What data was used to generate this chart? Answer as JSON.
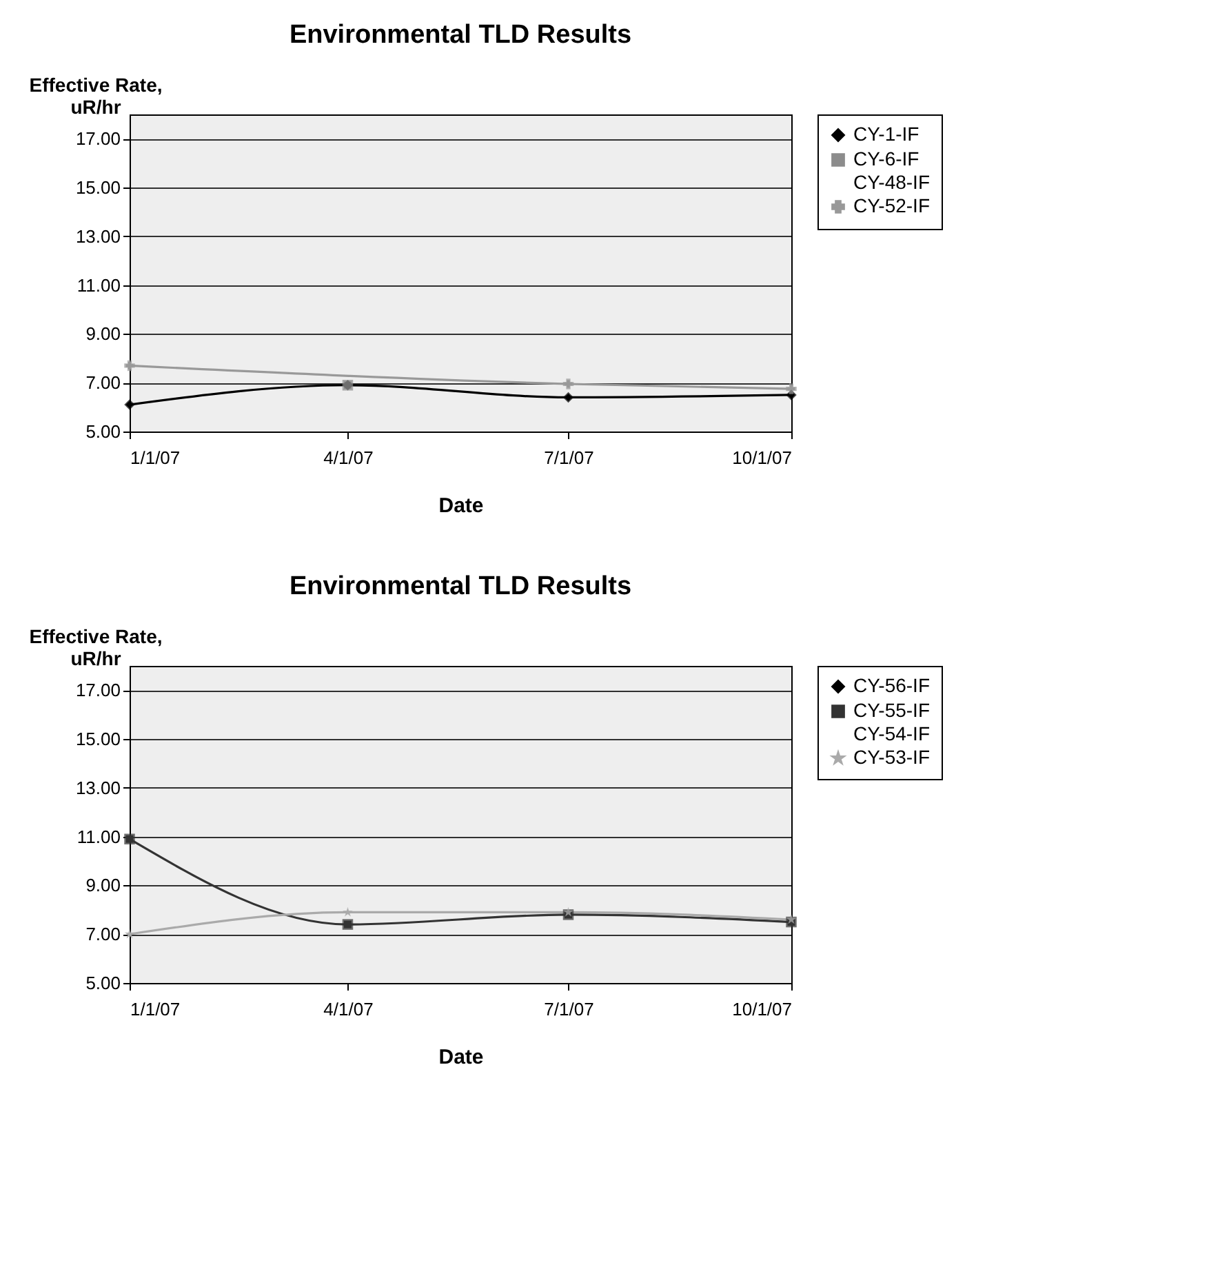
{
  "chart_data": [
    {
      "type": "line",
      "title": "Environmental TLD Results",
      "xlabel": "Date",
      "ylabel": "Effective Rate,\nuR/hr",
      "x": [
        "2007-01-01",
        "2007-04-01",
        "2007-07-01",
        "2007-10-01"
      ],
      "series": [
        {
          "name": "CY-1-IF",
          "color": "#000000",
          "marker": "diamond",
          "values": [
            6.1,
            6.9,
            6.4,
            6.5
          ]
        },
        {
          "name": "CY-6-IF",
          "color": "#8c8c8c",
          "marker": "square",
          "values": [
            null,
            6.9,
            null,
            null
          ]
        },
        {
          "name": "CY-48-IF",
          "marker": "none",
          "values": [
            null,
            null,
            null,
            null
          ]
        },
        {
          "name": "CY-52-IF",
          "color": "#999999",
          "marker": "cross",
          "values": [
            7.7,
            null,
            6.95,
            6.75
          ]
        }
      ],
      "xlim": [
        "2007-01-01",
        "2007-10-01"
      ],
      "xticks": [
        {
          "value": "2007-01-01",
          "label": "1/1/07"
        },
        {
          "value": "2007-04-01",
          "label": "4/1/07"
        },
        {
          "value": "2007-07-01",
          "label": "7/1/07"
        },
        {
          "value": "2007-10-01",
          "label": "10/1/07"
        }
      ],
      "ylim": [
        5,
        18
      ],
      "yticks": [
        {
          "value": 5,
          "label": "5.00"
        },
        {
          "value": 7,
          "label": "7.00"
        },
        {
          "value": 9,
          "label": "9.00"
        },
        {
          "value": 11,
          "label": "11.00"
        },
        {
          "value": 13,
          "label": "13.00"
        },
        {
          "value": 15,
          "label": "15.00"
        },
        {
          "value": 17,
          "label": "17.00"
        }
      ],
      "grid": "y",
      "legend": "right"
    },
    {
      "type": "line",
      "title": "Environmental TLD Results",
      "xlabel": "Date",
      "ylabel": "Effective Rate,\nuR/hr",
      "x": [
        "2007-01-01",
        "2007-04-01",
        "2007-07-01",
        "2007-10-01"
      ],
      "series": [
        {
          "name": "CY-56-IF",
          "color": "#000000",
          "marker": "diamond",
          "values": [
            null,
            null,
            null,
            null
          ]
        },
        {
          "name": "CY-55-IF",
          "color": "#333333",
          "marker": "square",
          "values": [
            10.9,
            7.4,
            7.8,
            7.5
          ]
        },
        {
          "name": "CY-54-IF",
          "marker": "none",
          "values": [
            null,
            null,
            null,
            null
          ]
        },
        {
          "name": "CY-53-IF",
          "color": "#aaaaaa",
          "marker": "star",
          "values": [
            7.0,
            7.9,
            7.9,
            7.6
          ]
        }
      ],
      "xlim": [
        "2007-01-01",
        "2007-10-01"
      ],
      "xticks": [
        {
          "value": "2007-01-01",
          "label": "1/1/07"
        },
        {
          "value": "2007-04-01",
          "label": "4/1/07"
        },
        {
          "value": "2007-07-01",
          "label": "7/1/07"
        },
        {
          "value": "2007-10-01",
          "label": "10/1/07"
        }
      ],
      "ylim": [
        5,
        18
      ],
      "yticks": [
        {
          "value": 5,
          "label": "5.00"
        },
        {
          "value": 7,
          "label": "7.00"
        },
        {
          "value": 9,
          "label": "9.00"
        },
        {
          "value": 11,
          "label": "11.00"
        },
        {
          "value": 13,
          "label": "13.00"
        },
        {
          "value": 15,
          "label": "15.00"
        },
        {
          "value": 17,
          "label": "17.00"
        }
      ],
      "grid": "y",
      "legend": "right"
    }
  ]
}
